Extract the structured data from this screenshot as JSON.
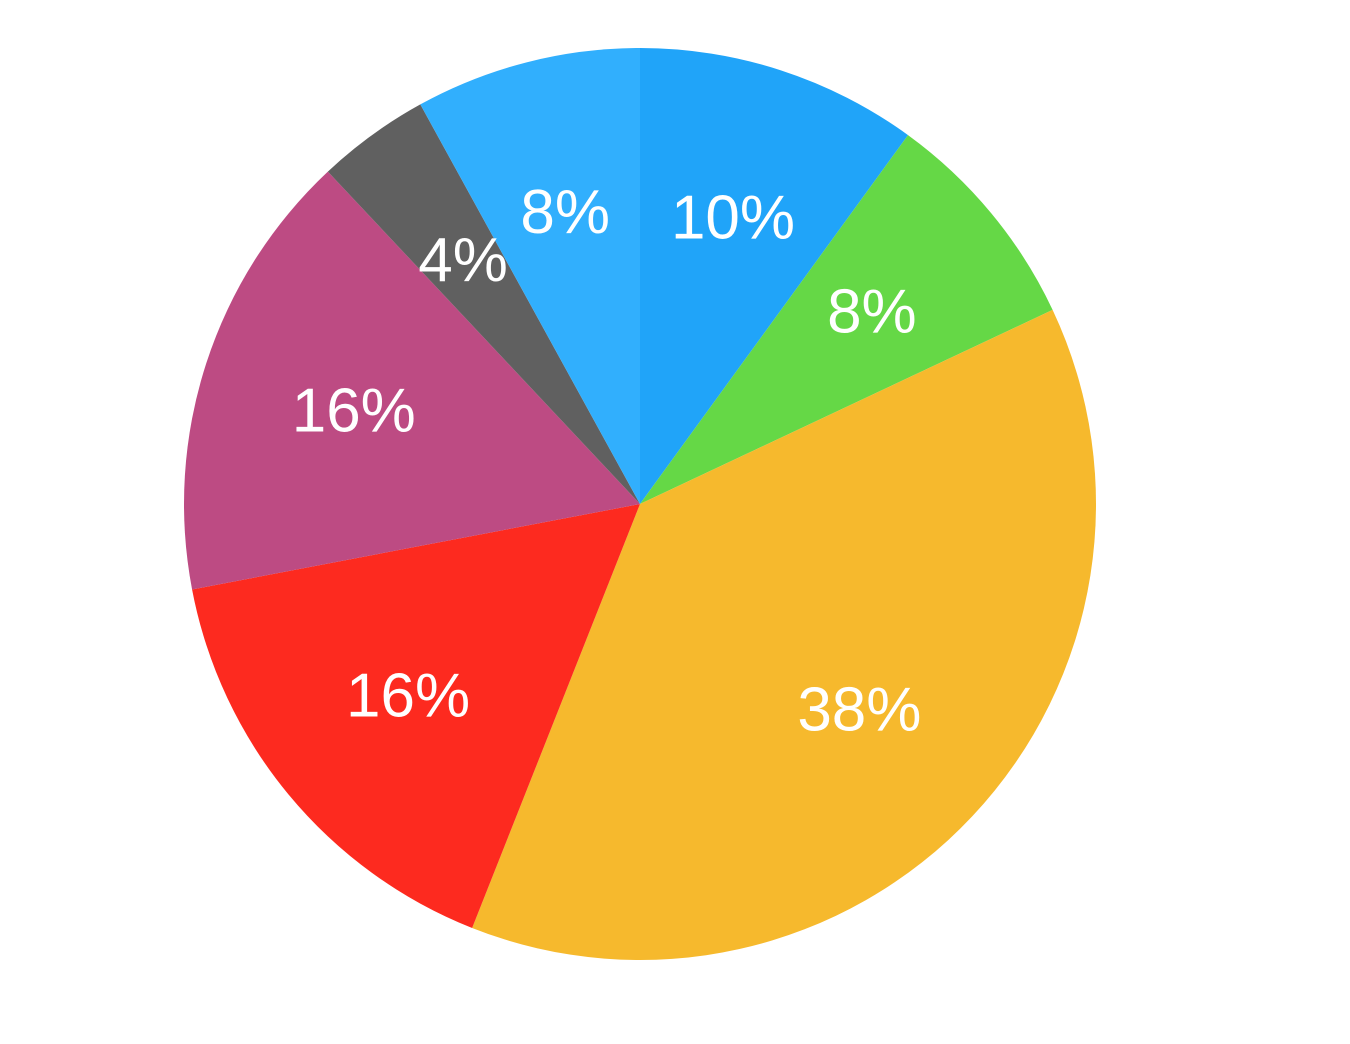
{
  "chart_data": {
    "type": "pie",
    "start": "top",
    "direction": "clockwise",
    "slices": [
      {
        "value": 10,
        "label": "10%",
        "color": "#20A4F9"
      },
      {
        "value": 8,
        "label": "8%",
        "color": "#65D846"
      },
      {
        "value": 38,
        "label": "38%",
        "color": "#F6B92D"
      },
      {
        "value": 16,
        "label": "16%",
        "color": "#FD2A1F"
      },
      {
        "value": 16,
        "label": "16%",
        "color": "#BD4B83"
      },
      {
        "value": 4,
        "label": "4%",
        "color": "#606060"
      },
      {
        "value": 8,
        "label": "8%",
        "color": "#31AFFD"
      }
    ]
  }
}
